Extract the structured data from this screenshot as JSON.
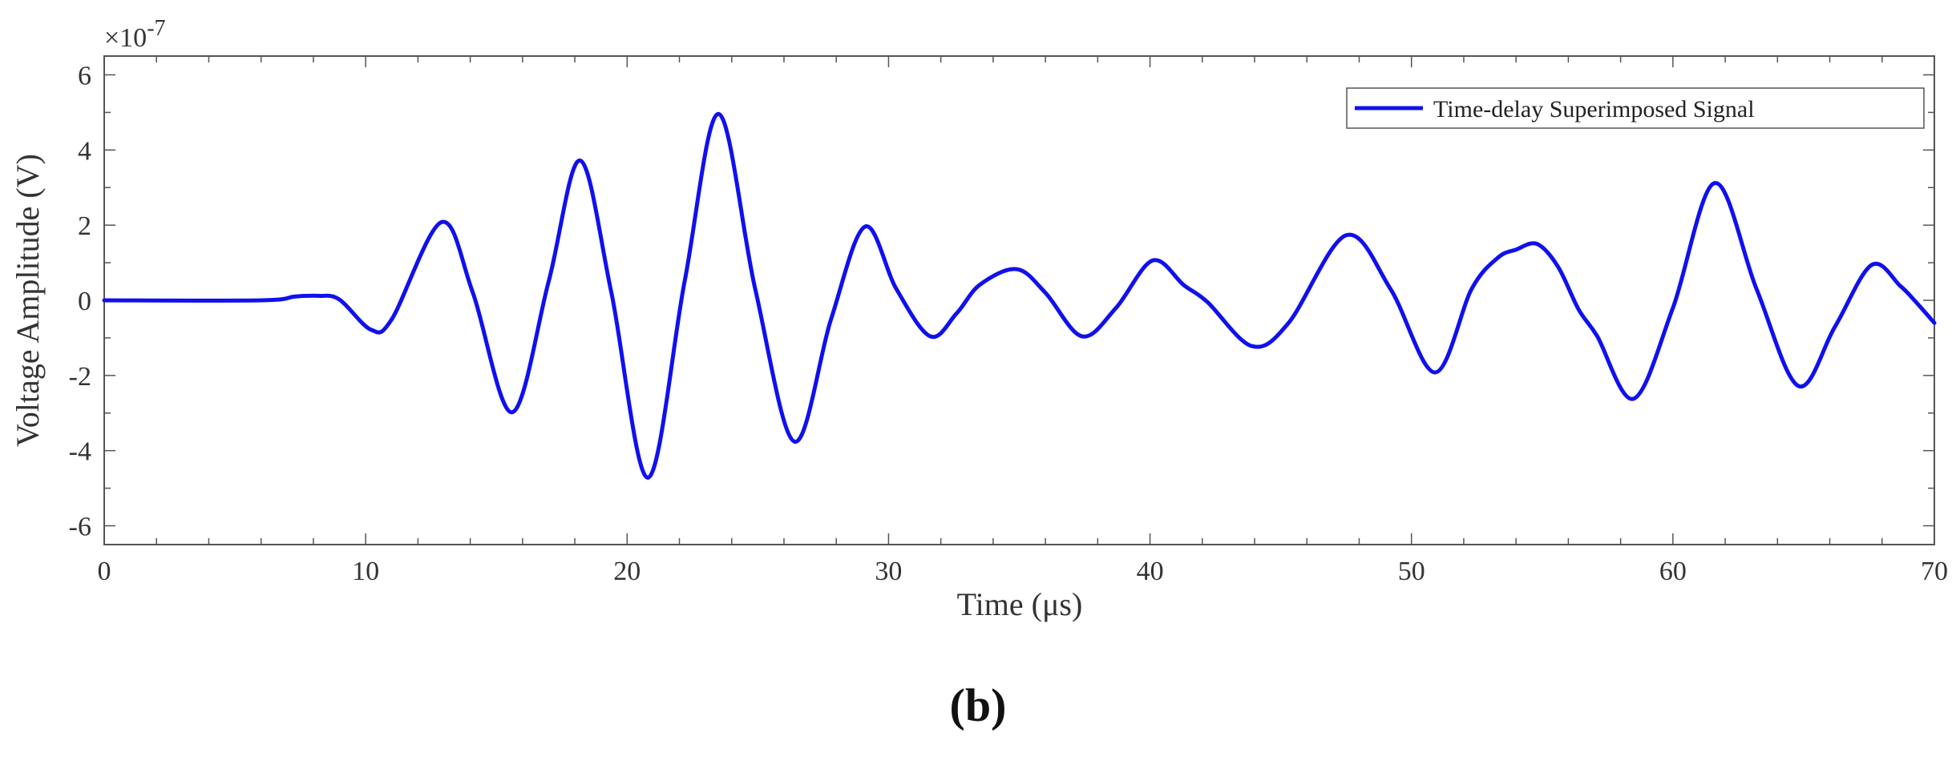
{
  "chart_data": {
    "type": "line",
    "xlabel": "Time (μs)",
    "ylabel": "Voltage Amplitude (V)",
    "exponent_label": "×10",
    "exponent_power": "-7",
    "panel_label": "(b)",
    "xlim": [
      0,
      70
    ],
    "ylim": [
      -6.5,
      6.5
    ],
    "xticks": [
      0,
      10,
      20,
      30,
      40,
      50,
      60,
      70
    ],
    "yticks": [
      -6,
      -4,
      -2,
      0,
      2,
      4,
      6
    ],
    "legend_position": "top-right",
    "grid": false,
    "series": [
      {
        "name": "Time-delay Superimposed Signal",
        "color": "#1010ee",
        "x": [
          0,
          6,
          7.3,
          8.2,
          9.0,
          10.2,
          11.0,
          12.9,
          14.1,
          15.6,
          17.0,
          18.2,
          19.4,
          20.8,
          22.2,
          23.5,
          24.9,
          26.4,
          27.8,
          29.1,
          30.3,
          31.6,
          32.6,
          33.5,
          34.9,
          36.0,
          37.4,
          38.7,
          40.1,
          41.3,
          42.2,
          43.9,
          45.3,
          47.5,
          49.2,
          50.9,
          52.3,
          53.3,
          54.0,
          54.8,
          55.6,
          56.4,
          57.1,
          58.5,
          60.0,
          61.6,
          63.2,
          64.8,
          66.2,
          67.6,
          68.7,
          69.3,
          70.0
        ],
        "y": [
          0,
          0,
          0.1,
          0.12,
          0.02,
          -0.78,
          -0.5,
          2.08,
          0.2,
          -2.98,
          0.5,
          3.72,
          0.2,
          -4.72,
          0.5,
          4.96,
          0.3,
          -3.76,
          -0.5,
          1.96,
          0.3,
          -0.96,
          -0.35,
          0.42,
          0.83,
          0.2,
          -0.96,
          -0.2,
          1.06,
          0.4,
          -0.05,
          -1.22,
          -0.6,
          1.73,
          0.3,
          -1.92,
          0.3,
          1.13,
          1.35,
          1.5,
          0.9,
          -0.25,
          -0.95,
          -2.62,
          -0.2,
          3.12,
          0.3,
          -2.28,
          -0.7,
          0.94,
          0.38,
          -0.05,
          -0.6
        ]
      }
    ]
  }
}
